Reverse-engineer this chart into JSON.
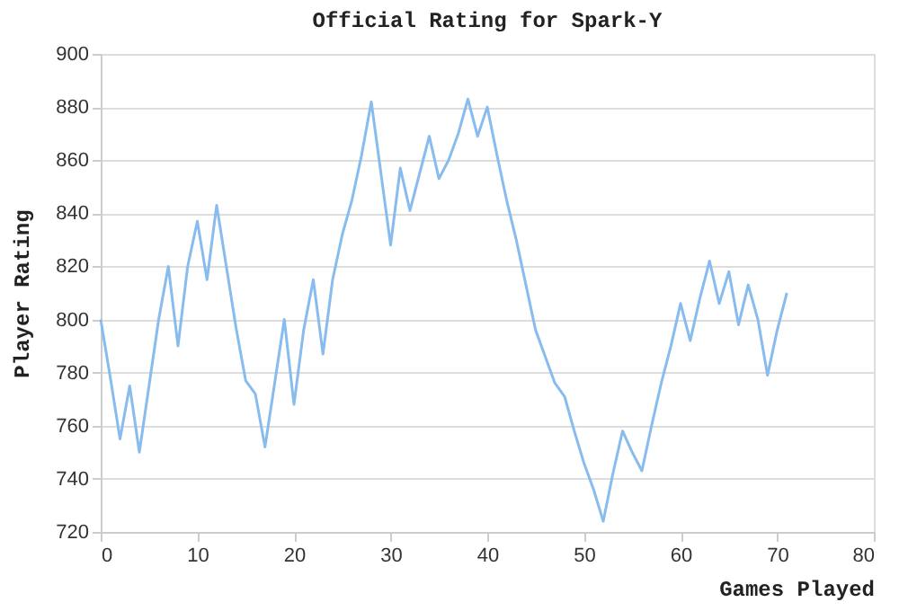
{
  "chart_data": {
    "type": "line",
    "title": "Official Rating for Spark-Y",
    "xlabel": "Games Played",
    "ylabel": "Player Rating",
    "x": [
      0,
      1,
      2,
      3,
      4,
      5,
      6,
      7,
      8,
      9,
      10,
      11,
      12,
      13,
      14,
      15,
      16,
      17,
      18,
      19,
      20,
      21,
      22,
      23,
      24,
      25,
      26,
      27,
      28,
      29,
      30,
      31,
      32,
      33,
      34,
      35,
      36,
      37,
      38,
      39,
      40,
      41,
      42,
      43,
      44,
      45,
      46,
      47,
      48,
      49,
      50,
      51,
      52,
      53,
      54,
      55,
      56,
      57,
      58,
      59,
      60,
      61,
      62,
      63,
      64,
      65,
      66,
      67,
      68,
      69,
      70,
      71
    ],
    "series": [
      {
        "color": "#88bbee",
        "values": [
          800,
          778,
          755,
          775,
          750,
          775,
          800,
          820,
          790,
          820,
          837,
          815,
          843,
          820,
          797,
          777,
          772,
          752,
          776,
          800,
          768,
          796,
          815,
          787,
          815,
          832,
          845,
          862,
          882,
          855,
          828,
          857,
          841,
          855,
          869,
          853,
          860,
          870,
          883,
          869,
          880,
          862,
          845,
          830,
          813,
          796,
          786,
          776,
          771,
          758,
          746,
          736,
          724,
          742,
          758,
          750,
          743,
          760,
          776,
          790,
          806,
          792,
          808,
          822,
          806,
          818,
          798,
          813,
          800,
          779,
          796,
          810
        ]
      }
    ],
    "xlim": [
      0,
      80
    ],
    "xticks": [
      0,
      10,
      20,
      30,
      40,
      50,
      60,
      70,
      80
    ],
    "ylim": [
      720,
      900
    ],
    "yticks": [
      720,
      740,
      760,
      780,
      800,
      820,
      840,
      860,
      880,
      900
    ],
    "grid": "y",
    "legend": false,
    "marker": "none",
    "line_style": "solid"
  }
}
